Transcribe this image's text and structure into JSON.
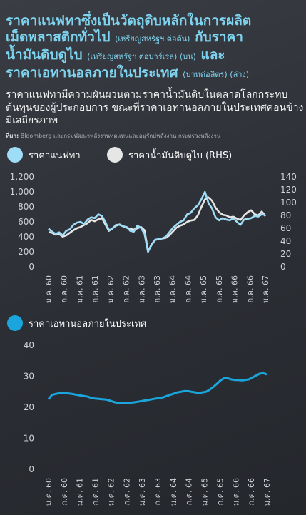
{
  "title": {
    "line1": "ราคาแนฟทาซึ่งเป็นวัตถุดิบหลักในการผลิต",
    "line2_main": "เม็ดพลาสติกทั่วไป",
    "line2_small": "(เหรียญสหรัฐฯ ต่อตัน)",
    "line2_tail": "กับราคา",
    "line3_main": "น้ำมันดิบดูไบ",
    "line3_small": "(เหรียญสหรัฐฯ ต่อบาร์เรล) (บน)",
    "line3_tail": "และ",
    "line4_main": "ราคาเอทานอลภายในประเทศ",
    "line4_small": "(บาทต่อลิตร) (ล่าง)"
  },
  "description": "ราคาแนฟทามีความผันผวนตามราคาน้ำมันดิบในตลาดโลกกระทบต้นทุนของผู้ประกอบการ ขณะที่ราคาเอทานอลภายในประเทศค่อนข้างมีเสถียรภาพ",
  "source": {
    "label": "ที่มา:",
    "text": "Bloomberg และกรมพัฒนาพลังงานทดแทนและอนุรักษ์พลังงาน กระทรวงพลังงาน"
  },
  "colors": {
    "naphtha": "#9fdcf6",
    "dubai": "#e6e6e6",
    "ethanol": "#1aa6dd",
    "title": "#7ed3ef"
  },
  "chart_data": [
    {
      "type": "line",
      "legend": [
        "ราคาแนฟทา",
        "ราคาน้ำมันดิบดูไบ (RHS)"
      ],
      "x_tick_labels": [
        "ม.ค. 60",
        "ก.ค. 60",
        "ม.ค. 61",
        "ก.ค. 61",
        "ม.ค. 62",
        "ก.ค. 62",
        "ม.ค. 63",
        "ก.ค. 63",
        "ม.ค. 64",
        "ก.ค. 64",
        "ม.ค. 65",
        "ก.ค. 65",
        "ม.ค. 66",
        "ก.ค. 66",
        "ม.ค. 67"
      ],
      "ylim_left": [
        0,
        1200
      ],
      "yticks_left": [
        "0",
        "200",
        "400",
        "600",
        "800",
        "1,000",
        "1,200"
      ],
      "ylim_right": [
        0,
        140
      ],
      "yticks_right": [
        "0",
        "20",
        "40",
        "60",
        "80",
        "100",
        "120",
        "140"
      ],
      "series": [
        {
          "name": "ราคาแนฟทา",
          "axis": "left",
          "values": [
            510,
            470,
            440,
            460,
            420,
            480,
            500,
            560,
            590,
            600,
            570,
            630,
            660,
            650,
            700,
            680,
            600,
            490,
            510,
            560,
            560,
            540,
            530,
            480,
            470,
            550,
            520,
            440,
            200,
            300,
            360,
            370,
            380,
            400,
            460,
            520,
            560,
            600,
            620,
            700,
            720,
            780,
            820,
            900,
            1000,
            850,
            780,
            660,
            620,
            650,
            630,
            620,
            650,
            600,
            560,
            630,
            640,
            650,
            680,
            670,
            700,
            690
          ]
        },
        {
          "name": "ราคาน้ำมันดิบดูไบ (RHS)",
          "axis": "right",
          "values": [
            54,
            53,
            50,
            51,
            47,
            49,
            53,
            57,
            60,
            62,
            65,
            68,
            73,
            71,
            74,
            76,
            66,
            56,
            60,
            64,
            66,
            63,
            61,
            59,
            58,
            60,
            62,
            57,
            25,
            34,
            42,
            43,
            44,
            45,
            49,
            55,
            61,
            64,
            66,
            70,
            72,
            73,
            80,
            93,
            105,
            108,
            103,
            92,
            85,
            81,
            80,
            77,
            78,
            75,
            73,
            80,
            85,
            88,
            82,
            80,
            86,
            79
          ]
        }
      ]
    },
    {
      "type": "line",
      "legend": [
        "ราคาเอทานอลภายในประเทศ"
      ],
      "x_tick_labels": [
        "ม.ค. 60",
        "ก.ค. 60",
        "ม.ค. 61",
        "ก.ค. 61",
        "ม.ค. 62",
        "ก.ค. 62",
        "ม.ค. 63",
        "ก.ค. 63",
        "ม.ค. 64",
        "ก.ค. 64",
        "ม.ค. 65",
        "ก.ค. 65",
        "ม.ค. 66",
        "ก.ค. 66",
        "ม.ค. 67"
      ],
      "ylim": [
        0,
        40
      ],
      "yticks": [
        "0",
        "10",
        "20",
        "30",
        "40"
      ],
      "series": [
        {
          "name": "ราคาเอทานอลภายในประเทศ",
          "values": [
            22.6,
            24.0,
            24.3,
            24.5,
            24.5,
            24.5,
            24.4,
            24.2,
            24.0,
            23.8,
            23.6,
            23.4,
            23.0,
            22.8,
            22.7,
            22.6,
            22.5,
            22.2,
            21.8,
            21.5,
            21.4,
            21.4,
            21.4,
            21.5,
            21.6,
            21.8,
            22.0,
            22.2,
            22.4,
            22.6,
            22.8,
            23.0,
            23.2,
            23.6,
            24.0,
            24.4,
            24.8,
            25.0,
            25.2,
            25.2,
            25.0,
            24.8,
            24.6,
            24.8,
            25.0,
            25.6,
            26.5,
            27.5,
            28.6,
            29.3,
            29.4,
            29.0,
            28.8,
            28.8,
            28.7,
            28.8,
            29.0,
            29.6,
            30.2,
            30.8,
            31.0,
            30.6
          ]
        }
      ]
    }
  ]
}
